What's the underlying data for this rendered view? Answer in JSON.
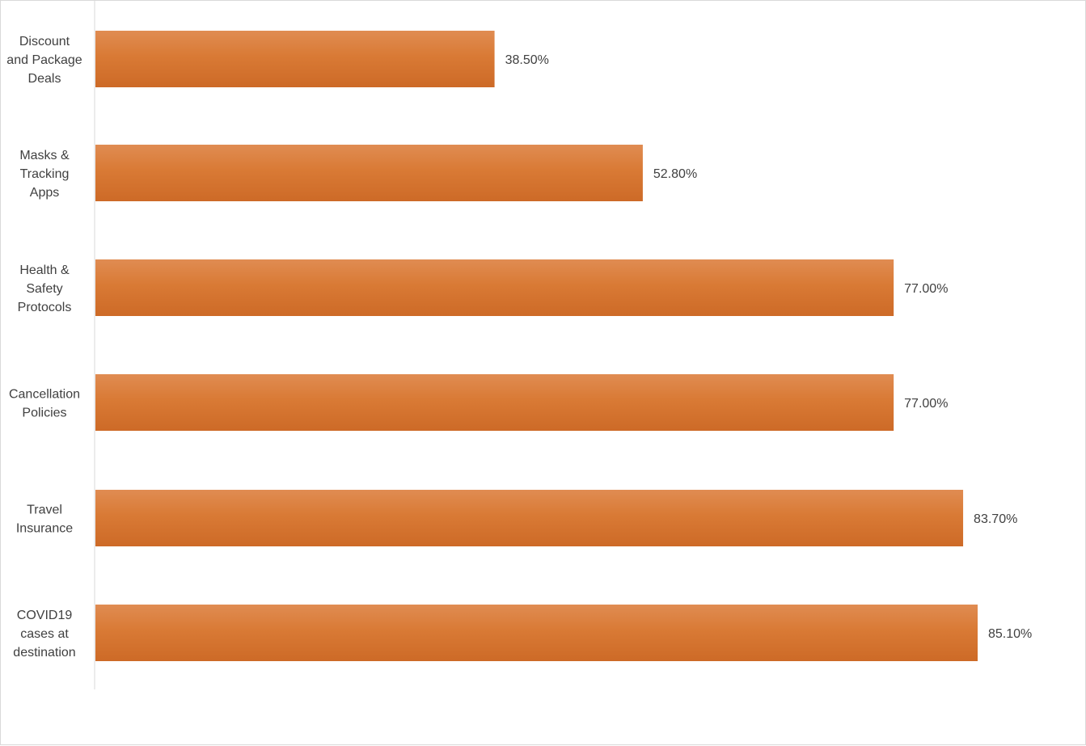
{
  "chart_data": {
    "type": "bar",
    "orientation": "horizontal",
    "categories": [
      [
        "Discount",
        "and Package",
        "Deals"
      ],
      [
        "Masks &",
        "Tracking",
        "Apps"
      ],
      [
        "Health &",
        "Safety",
        "Protocols"
      ],
      [
        "Cancellation",
        "Policies"
      ],
      [
        "Travel",
        "Insurance"
      ],
      [
        "COVID19",
        "cases at",
        "destination"
      ]
    ],
    "values": [
      38.5,
      52.8,
      77.0,
      77.0,
      83.7,
      85.1
    ],
    "value_labels": [
      "38.50%",
      "52.80%",
      "77.00%",
      "77.00%",
      "83.70%",
      "85.10%"
    ],
    "title": "",
    "xlabel": "",
    "ylabel": "",
    "xlim": [
      0,
      100
    ],
    "grid": false,
    "legend": "none",
    "bar_color": "#d97a35",
    "bar_color_light": "#e08c52",
    "bar_color_dark": "#cd6a27"
  }
}
